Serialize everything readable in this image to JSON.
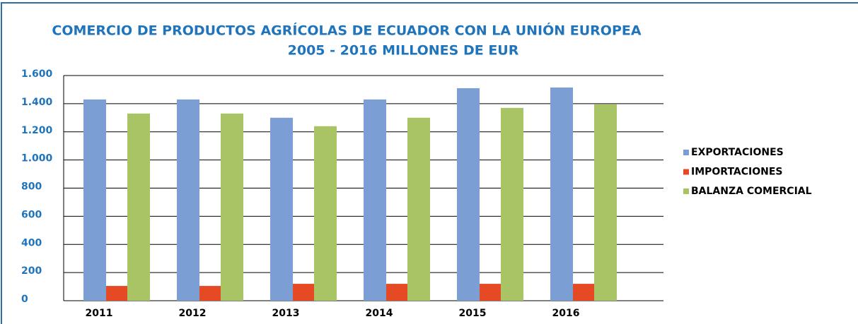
{
  "chart_data": {
    "type": "bar",
    "title": "COMERCIO DE PRODUCTOS AGRÍCOLAS DE ECUADOR CON LA UNIÓN EUROPEA",
    "subtitle": "2005 - 2016  MILLONES DE EUR",
    "categories": [
      "2011",
      "2012",
      "2013",
      "2014",
      "2015",
      "2016"
    ],
    "series": [
      {
        "name": "EXPORTACIONES",
        "color": "#7b9fd4",
        "values": [
          1430,
          1430,
          1300,
          1430,
          1510,
          1515
        ]
      },
      {
        "name": "IMPORTACIONES",
        "color": "#e64a25",
        "values": [
          105,
          105,
          120,
          120,
          120,
          120
        ]
      },
      {
        "name": "BALANZA COMERCIAL",
        "color": "#a9c464",
        "values": [
          1330,
          1330,
          1240,
          1300,
          1370,
          1395
        ]
      }
    ],
    "ylim": [
      0,
      1600
    ],
    "yticks": [
      0,
      200,
      400,
      600,
      800,
      {
        "value": 1000,
        "label": "1.000"
      },
      {
        "value": 1200,
        "label": "1.200"
      },
      {
        "value": 1400,
        "label": "1.400"
      },
      {
        "value": 1600,
        "label": "1.600"
      }
    ],
    "grid": true,
    "legend": "right"
  }
}
